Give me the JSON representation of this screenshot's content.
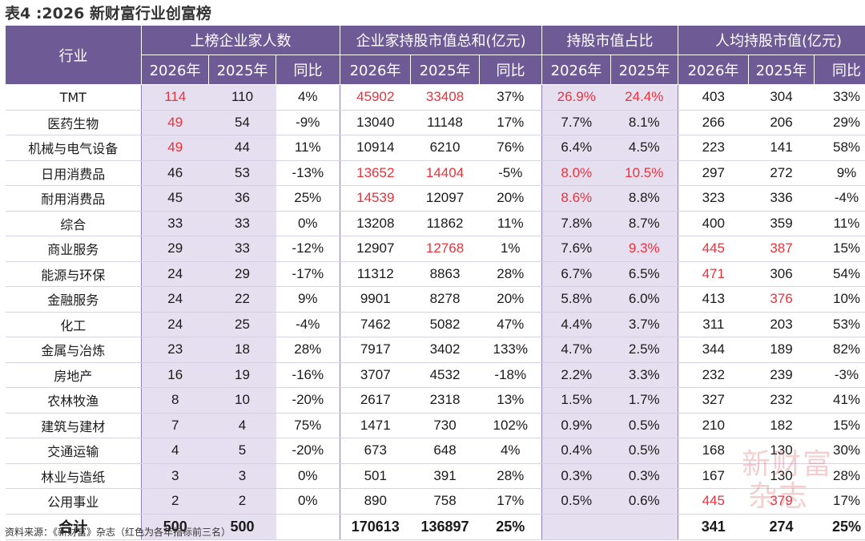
{
  "title": "表4 :2026 新财富行业创富榜",
  "header": {
    "industry": "行业",
    "groups": [
      "上榜企业家人数",
      "企业家持股市值总和(亿元)",
      "持股市值占比",
      "人均持股市值(亿元)"
    ],
    "sub": [
      "2026年",
      "2025年",
      "同比",
      "2026年",
      "2025年",
      "同比",
      "2026年",
      "2025年",
      "2026年",
      "2025年",
      "同比"
    ]
  },
  "rows": [
    {
      "industry": "TMT",
      "cells": [
        "114",
        "110",
        "4%",
        "45902",
        "33408",
        "37%",
        "26.9%",
        "24.4%",
        "403",
        "304",
        "33%"
      ],
      "red": [
        0,
        3,
        4,
        6,
        7
      ]
    },
    {
      "industry": "医药生物",
      "cells": [
        "49",
        "54",
        "-9%",
        "13040",
        "11148",
        "17%",
        "7.7%",
        "8.1%",
        "266",
        "206",
        "29%"
      ],
      "red": [
        0
      ]
    },
    {
      "industry": "机械与电气设备",
      "cells": [
        "49",
        "44",
        "11%",
        "10914",
        "6210",
        "76%",
        "6.4%",
        "4.5%",
        "223",
        "141",
        "58%"
      ],
      "red": [
        0
      ]
    },
    {
      "industry": "日用消费品",
      "cells": [
        "46",
        "53",
        "-13%",
        "13652",
        "14404",
        "-5%",
        "8.0%",
        "10.5%",
        "297",
        "272",
        "9%"
      ],
      "red": [
        3,
        4,
        6,
        7
      ]
    },
    {
      "industry": "耐用消费品",
      "cells": [
        "45",
        "36",
        "25%",
        "14539",
        "12097",
        "20%",
        "8.6%",
        "8.8%",
        "323",
        "336",
        "-4%"
      ],
      "red": [
        3,
        6
      ]
    },
    {
      "industry": "综合",
      "cells": [
        "33",
        "33",
        "0%",
        "13208",
        "11862",
        "11%",
        "7.8%",
        "8.7%",
        "400",
        "359",
        "11%"
      ],
      "red": []
    },
    {
      "industry": "商业服务",
      "cells": [
        "29",
        "33",
        "-12%",
        "12907",
        "12768",
        "1%",
        "7.6%",
        "9.3%",
        "445",
        "387",
        "15%"
      ],
      "red": [
        4,
        7,
        8,
        9
      ]
    },
    {
      "industry": "能源与环保",
      "cells": [
        "24",
        "29",
        "-17%",
        "11312",
        "8863",
        "28%",
        "6.7%",
        "6.5%",
        "471",
        "306",
        "54%"
      ],
      "red": [
        8
      ]
    },
    {
      "industry": "金融服务",
      "cells": [
        "24",
        "22",
        "9%",
        "9901",
        "8278",
        "20%",
        "5.8%",
        "6.0%",
        "413",
        "376",
        "10%"
      ],
      "red": [
        9
      ]
    },
    {
      "industry": "化工",
      "cells": [
        "24",
        "25",
        "-4%",
        "7462",
        "5082",
        "47%",
        "4.4%",
        "3.7%",
        "311",
        "203",
        "53%"
      ],
      "red": []
    },
    {
      "industry": "金属与冶炼",
      "cells": [
        "23",
        "18",
        "28%",
        "7917",
        "3402",
        "133%",
        "4.7%",
        "2.5%",
        "344",
        "189",
        "82%"
      ],
      "red": []
    },
    {
      "industry": "房地产",
      "cells": [
        "16",
        "19",
        "-16%",
        "3707",
        "4532",
        "-18%",
        "2.2%",
        "3.3%",
        "232",
        "239",
        "-3%"
      ],
      "red": []
    },
    {
      "industry": "农林牧渔",
      "cells": [
        "8",
        "10",
        "-20%",
        "2617",
        "2318",
        "13%",
        "1.5%",
        "1.7%",
        "327",
        "232",
        "41%"
      ],
      "red": []
    },
    {
      "industry": "建筑与建材",
      "cells": [
        "7",
        "4",
        "75%",
        "1471",
        "730",
        "102%",
        "0.9%",
        "0.5%",
        "210",
        "182",
        "15%"
      ],
      "red": []
    },
    {
      "industry": "交通运输",
      "cells": [
        "4",
        "5",
        "-20%",
        "673",
        "648",
        "4%",
        "0.4%",
        "0.5%",
        "168",
        "130",
        "30%"
      ],
      "red": []
    },
    {
      "industry": "林业与造纸",
      "cells": [
        "3",
        "3",
        "0%",
        "501",
        "391",
        "28%",
        "0.3%",
        "0.3%",
        "167",
        "130",
        "28%"
      ],
      "red": []
    },
    {
      "industry": "公用事业",
      "cells": [
        "2",
        "2",
        "0%",
        "890",
        "758",
        "17%",
        "0.5%",
        "0.6%",
        "445",
        "379",
        "17%"
      ],
      "red": [
        8,
        9
      ]
    }
  ],
  "total": {
    "label": "合计",
    "cells": [
      "500",
      "500",
      "",
      "170613",
      "136897",
      "25%",
      "",
      "",
      "341",
      "274",
      "25%"
    ]
  },
  "source": "资料来源：《新财富》杂志（红色为各年指标前三名）",
  "watermark": [
    "新财富",
    "杂志"
  ],
  "colors": {
    "header": "#6e5a94",
    "shade": "#e6dff0",
    "highlight": "#e8323c"
  }
}
